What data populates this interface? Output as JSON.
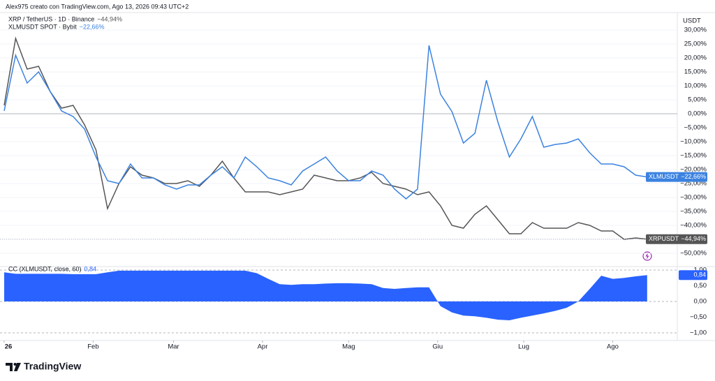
{
  "header": {
    "credit": "Alex975 creato con TradingView.com, Ago 13, 2026 09:43 UTC+2"
  },
  "branding": "TradingView",
  "chart_data": [
    {
      "type": "line",
      "y_axis_label": "USDT",
      "x": [
        0,
        4,
        8,
        12,
        16,
        20,
        24,
        28,
        32,
        36,
        40,
        44,
        48,
        52,
        56,
        60,
        64,
        68,
        72,
        76,
        80,
        84,
        88,
        92,
        96,
        100,
        104,
        108,
        112,
        116,
        120,
        124,
        128,
        132,
        136,
        140,
        144,
        148,
        152,
        156,
        160,
        164,
        168,
        172,
        176,
        180,
        184,
        188,
        192,
        196,
        200,
        204,
        208,
        212,
        216,
        220,
        224
      ],
      "xlim": [
        -1.46,
        234.5
      ],
      "ylim": [
        -54.25,
        35.25
      ],
      "grid": true,
      "yticks": [
        {
          "value": 30,
          "label": "30,00%"
        },
        {
          "value": 25,
          "label": "25,00%"
        },
        {
          "value": 20,
          "label": "20,00%"
        },
        {
          "value": 15,
          "label": "15,00%"
        },
        {
          "value": 10,
          "label": "10,00%"
        },
        {
          "value": 5,
          "label": "5,00%"
        },
        {
          "value": 0,
          "label": "0,00%"
        },
        {
          "value": -5,
          "label": "−5,00%"
        },
        {
          "value": -10,
          "label": "−10,00%"
        },
        {
          "value": -15,
          "label": "−15,00%"
        },
        {
          "value": -20,
          "label": "−20,00%"
        },
        {
          "value": -25,
          "label": "−25,00%"
        },
        {
          "value": -30,
          "label": "−30,00%"
        },
        {
          "value": -35,
          "label": "−35,00%"
        },
        {
          "value": -40,
          "label": "−40,00%"
        },
        {
          "value": -45,
          "label": "−45,00%"
        },
        {
          "value": -50,
          "label": "−50,00%"
        }
      ],
      "series": [
        {
          "name": "XRP / TetherUS · 1D · Binance",
          "ticker": "XRPUSDT",
          "change_label": "−44,94%",
          "color": "#555555",
          "values": [
            3,
            27,
            16,
            17,
            8,
            2,
            3,
            -4,
            -13,
            -34,
            -25,
            -19,
            -22,
            -23,
            -25,
            -25,
            -24,
            -26,
            -22,
            -17,
            -23,
            -28,
            -28,
            -28,
            -29,
            -28,
            -27,
            -22,
            -23,
            -24,
            -24,
            -23,
            -21,
            -25,
            -26,
            -27,
            -29,
            -28,
            -33,
            -40,
            -41,
            -36,
            -33,
            -38,
            -43,
            -43,
            -39,
            -41,
            -41,
            -41,
            -39,
            -40,
            -42,
            -42,
            -45,
            -44.5,
            -44.94
          ]
        },
        {
          "name": "XLMUSDT SPOT · Bybit",
          "ticker": "XLMUSDT",
          "change_label": "−22,66%",
          "color": "#3b82e0",
          "values": [
            1,
            21,
            11,
            15,
            8,
            1,
            -1,
            -5.5,
            -15.5,
            -24,
            -25,
            -18,
            -23,
            -23,
            -25.5,
            -27,
            -25.5,
            -25.5,
            -22,
            -19,
            -23,
            -15.5,
            -19,
            -23,
            -24,
            -25.5,
            -20.5,
            -18,
            -15.5,
            -20.5,
            -24,
            -24,
            -20.5,
            -22,
            -27,
            -30.5,
            -27,
            24.5,
            7,
            0.75,
            -10.5,
            -7,
            12,
            -3,
            -15.5,
            -9,
            -1,
            -12,
            -11,
            -10.5,
            -9,
            -14,
            -18,
            -18,
            -19,
            -22,
            -22.66
          ]
        }
      ]
    },
    {
      "type": "area",
      "x": [
        0,
        4,
        8,
        12,
        16,
        20,
        24,
        28,
        32,
        36,
        40,
        44,
        48,
        52,
        56,
        60,
        64,
        68,
        72,
        76,
        80,
        84,
        88,
        92,
        96,
        100,
        104,
        108,
        112,
        116,
        120,
        124,
        128,
        132,
        136,
        140,
        144,
        148,
        152,
        156,
        160,
        164,
        168,
        172,
        176,
        180,
        184,
        188,
        192,
        196,
        200,
        204,
        208,
        212,
        216,
        220,
        224
      ],
      "xlim": [
        -1.46,
        234.5
      ],
      "ylim": [
        -1.244,
        1.089
      ],
      "yticks": [
        {
          "value": 1,
          "label": "1,00"
        },
        {
          "value": 0.5,
          "label": "0,50"
        },
        {
          "value": 0,
          "label": "0,00"
        },
        {
          "value": -0.5,
          "label": "−0,50"
        },
        {
          "value": -1,
          "label": "−1,00"
        }
      ],
      "xticks": [
        {
          "value": 0,
          "label": "26"
        },
        {
          "value": 31,
          "label": "Feb"
        },
        {
          "value": 59,
          "label": "Mar"
        },
        {
          "value": 90,
          "label": "Apr"
        },
        {
          "value": 120,
          "label": "Mag"
        },
        {
          "value": 151,
          "label": "Giu"
        },
        {
          "value": 181,
          "label": "Lug"
        },
        {
          "value": 212,
          "label": "Ago"
        }
      ],
      "series": [
        {
          "name": "CC (XLMUSDT, close, 60)",
          "value_label": "0,84",
          "color": "#2962ff",
          "values": [
            0.93,
            0.88,
            0.88,
            0.88,
            0.88,
            0.88,
            0.87,
            0.87,
            0.87,
            0.93,
            0.98,
            0.98,
            0.98,
            0.98,
            0.98,
            0.98,
            0.98,
            0.98,
            0.98,
            0.98,
            0.98,
            0.98,
            0.9,
            0.72,
            0.55,
            0.53,
            0.55,
            0.55,
            0.57,
            0.58,
            0.58,
            0.57,
            0.55,
            0.43,
            0.4,
            0.43,
            0.45,
            0.45,
            -0.15,
            -0.35,
            -0.45,
            -0.47,
            -0.52,
            -0.58,
            -0.6,
            -0.52,
            -0.45,
            -0.38,
            -0.3,
            -0.2,
            0,
            0.4,
            0.82,
            0.72,
            0.75,
            0.8,
            0.84
          ]
        }
      ]
    }
  ]
}
